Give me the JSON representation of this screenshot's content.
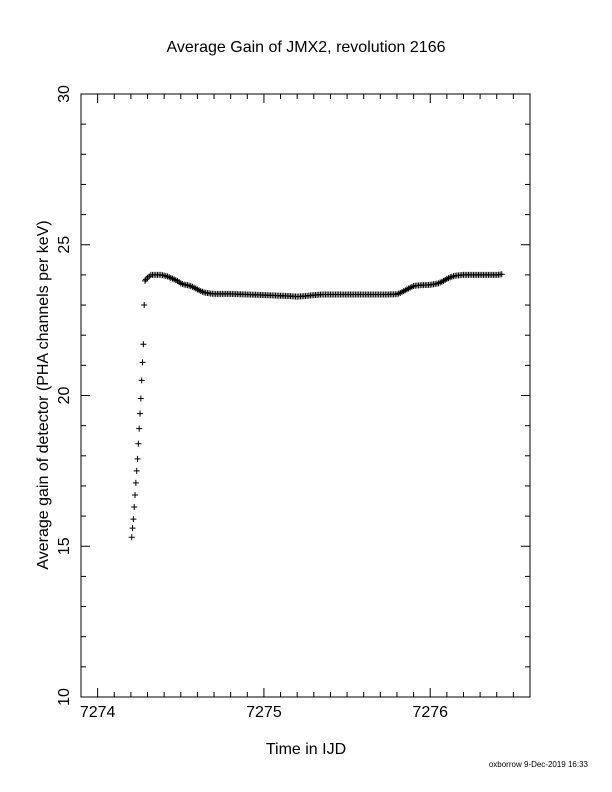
{
  "chart_data": {
    "type": "scatter",
    "title": "Average Gain of JMX2, revolution 2166",
    "xlabel": "Time in IJD",
    "ylabel": "Average gain of detector (PHA channels per keV)",
    "xlim": [
      7273.9,
      7276.6
    ],
    "ylim": [
      10,
      30
    ],
    "xticks": [
      7274,
      7275,
      7276
    ],
    "yticks": [
      10,
      15,
      20,
      25,
      30
    ],
    "marker": "+",
    "grid": false,
    "footer": "oxborrow  9-Dec-2019 16:33",
    "series": [
      {
        "x": [
          7274.205,
          7274.21,
          7274.215,
          7274.22,
          7274.225,
          7274.23,
          7274.235,
          7274.24,
          7274.245,
          7274.25,
          7274.255,
          7274.26,
          7274.265,
          7274.27,
          7274.275,
          7274.28,
          7274.285,
          7274.29,
          7274.3,
          7274.31,
          7274.32,
          7274.33,
          7274.34,
          7274.36,
          7274.38,
          7274.4,
          7274.42,
          7274.44,
          7274.46,
          7274.48,
          7274.5,
          7274.52,
          7274.54,
          7274.56,
          7274.58,
          7274.6,
          7274.62,
          7274.64,
          7274.66,
          7274.68,
          7274.7,
          7274.72,
          7274.74,
          7274.8,
          7274.85,
          7274.9,
          7274.95,
          7275.0,
          7275.05,
          7275.1,
          7275.15,
          7275.2,
          7275.25,
          7275.3,
          7275.35,
          7275.4,
          7275.45,
          7275.5,
          7275.55,
          7275.6,
          7275.65,
          7275.7,
          7275.75,
          7275.8,
          7275.82,
          7275.84,
          7275.86,
          7275.88,
          7275.9,
          7275.92,
          7275.95,
          7276.0,
          7276.05,
          7276.08,
          7276.1,
          7276.12,
          7276.14,
          7276.16,
          7276.18,
          7276.2,
          7276.25,
          7276.3,
          7276.35,
          7276.4,
          7276.43
        ],
        "y": [
          15.3,
          15.6,
          15.9,
          16.3,
          16.7,
          17.1,
          17.5,
          17.9,
          18.4,
          18.9,
          19.4,
          19.9,
          20.5,
          21.1,
          21.7,
          23.0,
          23.8,
          23.85,
          23.9,
          23.95,
          24.0,
          24.0,
          24.0,
          24.0,
          24.0,
          23.98,
          23.95,
          23.9,
          23.85,
          23.8,
          23.72,
          23.68,
          23.66,
          23.63,
          23.58,
          23.52,
          23.46,
          23.42,
          23.4,
          23.38,
          23.37,
          23.37,
          23.37,
          23.37,
          23.36,
          23.35,
          23.34,
          23.33,
          23.32,
          23.31,
          23.3,
          23.28,
          23.3,
          23.33,
          23.35,
          23.35,
          23.35,
          23.35,
          23.35,
          23.35,
          23.35,
          23.35,
          23.35,
          23.36,
          23.4,
          23.46,
          23.52,
          23.58,
          23.63,
          23.65,
          23.66,
          23.67,
          23.72,
          23.8,
          23.87,
          23.92,
          23.96,
          23.98,
          23.99,
          24.0,
          24.0,
          24.0,
          24.0,
          24.0,
          24.02
        ]
      }
    ]
  }
}
